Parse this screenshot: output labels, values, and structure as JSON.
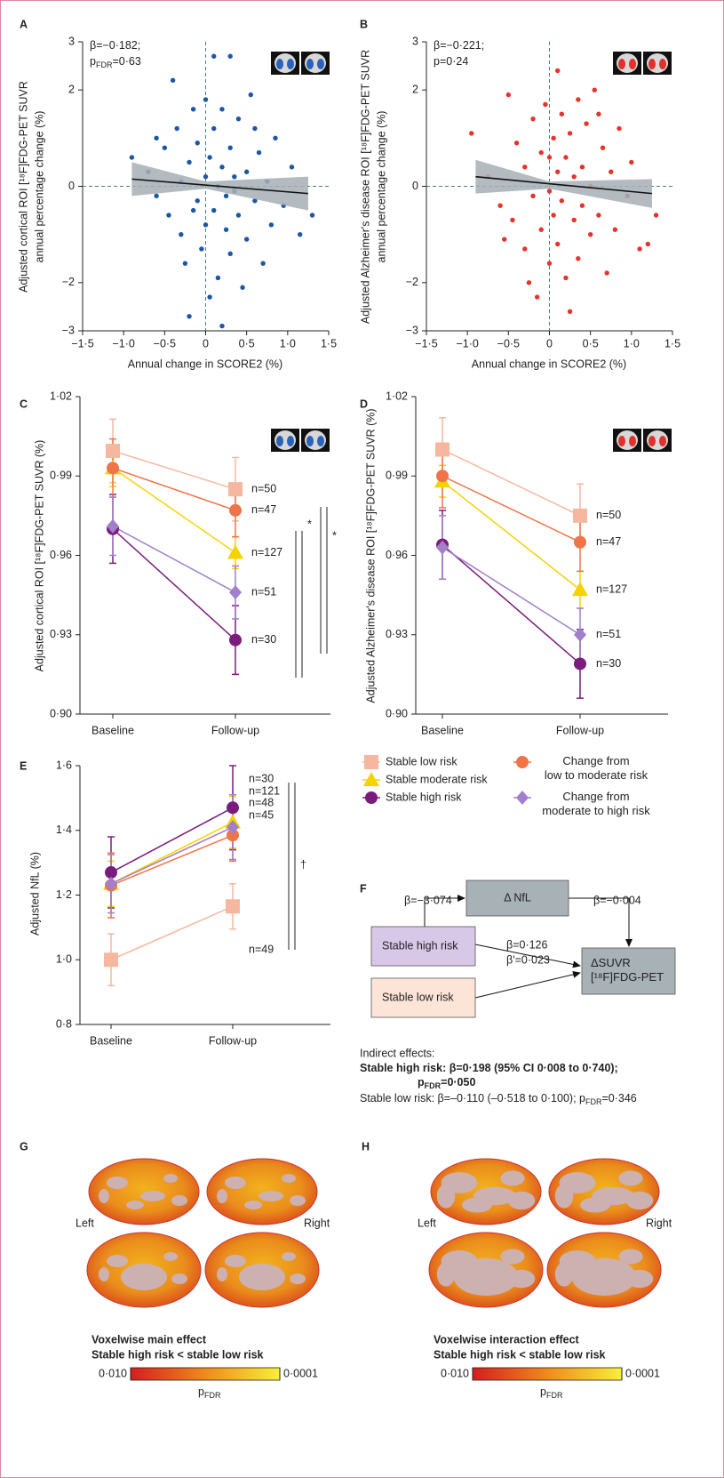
{
  "chart_data": [
    {
      "type": "scatter",
      "panel": "A",
      "ylabel": [
        "Adjusted cortical ROI [¹⁸F]FDG-PET SUVR",
        "annual percentage change (%)"
      ],
      "xlabel": "Annual change in SCORE2 (%)",
      "annotation": [
        {
          "text": "β=−0·182;"
        },
        {
          "text": "p",
          "sub": "FDR",
          "tail": "=0·63"
        }
      ],
      "color": "#1b57a5",
      "x": [
        -0.9,
        -0.7,
        -0.6,
        -0.5,
        -0.45,
        -0.4,
        -0.35,
        -0.3,
        -0.3,
        -0.25,
        -0.2,
        -0.2,
        -0.15,
        -0.1,
        -0.1,
        -0.05,
        0.0,
        0.0,
        0.0,
        0.05,
        0.05,
        0.1,
        0.1,
        0.1,
        0.15,
        0.15,
        0.2,
        0.2,
        0.2,
        0.25,
        0.25,
        0.3,
        0.3,
        0.3,
        0.35,
        0.4,
        0.4,
        0.45,
        0.5,
        0.5,
        0.55,
        0.6,
        0.65,
        0.7,
        0.75,
        0.8,
        0.85,
        0.95,
        1.05,
        1.15,
        1.3,
        -0.6,
        0.6,
        -0.15,
        0.35
      ],
      "values": [
        0.6,
        0.3,
        -0.2,
        0.8,
        -0.6,
        2.2,
        1.2,
        -1.0,
        0.1,
        -1.6,
        0.5,
        -2.7,
        1.6,
        -0.3,
        0.9,
        -1.3,
        0.2,
        1.8,
        -0.8,
        -2.3,
        0.6,
        2.7,
        -0.5,
        1.2,
        -1.9,
        0.0,
        -2.9,
        0.4,
        1.6,
        -0.9,
        -0.2,
        2.7,
        0.8,
        -1.4,
        0.2,
        -0.6,
        1.4,
        -2.1,
        0.3,
        -1.1,
        1.9,
        -0.3,
        0.7,
        -1.6,
        0.1,
        -0.8,
        1.0,
        -0.4,
        0.4,
        -1.0,
        -0.6,
        1.0,
        1.2,
        -0.5,
        -0.1
      ],
      "trend": {
        "x": [
          -0.9,
          1.25
        ],
        "y": [
          0.15,
          -0.15
        ]
      },
      "ci_band": {
        "x": [
          -0.9,
          0,
          1.25
        ],
        "lower": [
          -0.2,
          -0.05,
          -0.5
        ],
        "upper": [
          0.5,
          0.1,
          0.2
        ]
      },
      "xlim": [
        -1.5,
        1.5
      ],
      "xticks": [
        {
          "value": -1.5,
          "label": "−1·5"
        },
        {
          "value": -1,
          "label": "−1·0"
        },
        {
          "value": -0.5,
          "label": "−0·5"
        },
        0,
        {
          "value": 0.5,
          "label": "0·5"
        },
        {
          "value": 1,
          "label": "1·0"
        },
        {
          "value": 1.5,
          "label": "1·5"
        }
      ],
      "ylim": [
        -3,
        3
      ],
      "yticks": [
        {
          "value": -3,
          "label": "−3"
        },
        {
          "value": -2,
          "label": "−2"
        },
        0,
        2,
        3
      ]
    },
    {
      "type": "scatter",
      "panel": "B",
      "ylabel": [
        "Adjusted Alzheimer's disease ROI [¹⁸F]FDG-PET SUVR",
        "annual percentage change (%)"
      ],
      "xlabel": "Annual change in SCORE2 (%)",
      "annotation": [
        {
          "text": "β=−0·221;"
        },
        {
          "text": "p=0·24"
        }
      ],
      "color": "#e8322a",
      "x": [
        -0.95,
        -0.75,
        -0.6,
        -0.5,
        -0.45,
        -0.4,
        -0.3,
        -0.3,
        -0.25,
        -0.2,
        -0.2,
        -0.15,
        -0.1,
        -0.1,
        -0.05,
        0.0,
        0.0,
        0.05,
        0.05,
        0.1,
        0.1,
        0.1,
        0.15,
        0.15,
        0.2,
        0.2,
        0.25,
        0.25,
        0.3,
        0.3,
        0.35,
        0.35,
        0.4,
        0.4,
        0.45,
        0.5,
        0.5,
        0.55,
        0.6,
        0.65,
        0.7,
        0.75,
        0.8,
        0.85,
        0.95,
        1.0,
        1.1,
        1.2,
        1.3,
        -0.55,
        0.6,
        0.0
      ],
      "values": [
        1.1,
        0.2,
        -0.4,
        1.9,
        -0.7,
        0.9,
        -1.3,
        0.4,
        -2.0,
        1.4,
        -0.2,
        -2.3,
        0.7,
        -0.9,
        1.7,
        -0.1,
        -1.6,
        1.0,
        -0.6,
        2.4,
        0.3,
        -1.2,
        1.5,
        -0.3,
        -1.9,
        0.6,
        -2.6,
        1.1,
        -0.7,
        0.2,
        1.8,
        -1.5,
        0.4,
        -0.4,
        1.3,
        -1.0,
        0.0,
        2.0,
        -0.6,
        0.8,
        -1.8,
        0.3,
        -0.9,
        1.2,
        -0.2,
        0.5,
        -1.3,
        -1.2,
        -0.6,
        -1.1,
        1.5,
        0.6
      ],
      "trend": {
        "x": [
          -0.9,
          1.25
        ],
        "y": [
          0.2,
          -0.15
        ]
      },
      "ci_band": {
        "x": [
          -0.9,
          0,
          1.25
        ],
        "lower": [
          -0.15,
          -0.05,
          -0.45
        ],
        "upper": [
          0.55,
          0.1,
          0.15
        ]
      },
      "xlim": [
        -1.5,
        1.5
      ],
      "xticks": [
        {
          "value": -1.5,
          "label": "−1·5"
        },
        {
          "value": -1,
          "label": "−1·0"
        },
        {
          "value": -0.5,
          "label": "−0·5"
        },
        0,
        {
          "value": 0.5,
          "label": "0·5"
        },
        {
          "value": 1,
          "label": "1·0"
        },
        {
          "value": 1.5,
          "label": "1·5"
        }
      ],
      "ylim": [
        -3,
        3
      ],
      "yticks": [
        {
          "value": -3,
          "label": "−3"
        },
        {
          "value": -2,
          "label": "−2"
        },
        0,
        2,
        3
      ]
    },
    {
      "type": "line",
      "panel": "C",
      "ylabel": "Adjusted cortical ROI [¹⁸F]FDG-PET SUVR (%)",
      "categories": [
        "Baseline",
        "Follow-up"
      ],
      "series": [
        {
          "values": [
            0.9995,
            0.985
          ],
          "errors": [
            0.012,
            0.012
          ],
          "n_label": "n=50"
        },
        {
          "values": [
            0.993,
            0.961
          ],
          "errors": [
            0.007,
            0.006
          ],
          "n_label": "n=127"
        },
        {
          "values": [
            0.97,
            0.928
          ],
          "errors": [
            0.013,
            0.013
          ],
          "n_label": "n=30"
        },
        {
          "values": [
            0.993,
            0.977
          ],
          "errors": [
            0.011,
            0.01
          ],
          "n_label": "n=47"
        },
        {
          "values": [
            0.971,
            0.946
          ],
          "errors": [
            0.011,
            0.01
          ],
          "n_label": "n=51"
        }
      ],
      "significance": [
        {
          "label": "*"
        },
        {
          "label": "*"
        }
      ],
      "ylim": [
        0.9,
        1.02
      ],
      "yticks": [
        {
          "value": 0.9,
          "label": "0·90"
        },
        {
          "value": 0.93,
          "label": "0·93"
        },
        {
          "value": 0.96,
          "label": "0·96"
        },
        {
          "value": 0.99,
          "label": "0·99"
        },
        {
          "value": 1.02,
          "label": "1·02"
        }
      ]
    },
    {
      "type": "line",
      "panel": "D",
      "ylabel": "Adjusted Alzheimer's disease ROI [¹⁸F]FDG-PET SUVR (%)",
      "categories": [
        "Baseline",
        "Follow-up"
      ],
      "series": [
        {
          "values": [
            1.0,
            0.975
          ],
          "errors": [
            0.012,
            0.012
          ],
          "n_label": "n=50"
        },
        {
          "values": [
            0.988,
            0.947
          ],
          "errors": [
            0.006,
            0.007
          ],
          "n_label": "n=127"
        },
        {
          "values": [
            0.964,
            0.919
          ],
          "errors": [
            0.013,
            0.013
          ],
          "n_label": "n=30"
        },
        {
          "values": [
            0.99,
            0.965
          ],
          "errors": [
            0.012,
            0.011
          ],
          "n_label": "n=47"
        },
        {
          "values": [
            0.963,
            0.93
          ],
          "errors": [
            0.012,
            0.01
          ],
          "n_label": "n=51"
        }
      ],
      "ylim": [
        0.9,
        1.02
      ],
      "yticks": [
        {
          "value": 0.9,
          "label": "0·90"
        },
        {
          "value": 0.93,
          "label": "0·93"
        },
        {
          "value": 0.96,
          "label": "0·96"
        },
        {
          "value": 0.99,
          "label": "0·99"
        },
        {
          "value": 1.02,
          "label": "1·02"
        }
      ]
    },
    {
      "type": "line",
      "panel": "E",
      "ylabel": "Adjusted NfL (%)",
      "categories": [
        "Baseline",
        "Follow-up"
      ],
      "series": [
        {
          "values": [
            1.0,
            1.165
          ],
          "errors": [
            0.08,
            0.07
          ],
          "n_label": "n=49"
        },
        {
          "values": [
            1.235,
            1.425
          ],
          "errors": [
            0.07,
            0.08
          ],
          "n_label": "n=121"
        },
        {
          "values": [
            1.27,
            1.47
          ],
          "errors": [
            0.11,
            0.13
          ],
          "n_label": "n=30"
        },
        {
          "values": [
            1.23,
            1.385
          ],
          "errors": [
            0.1,
            0.08
          ],
          "n_label": "n=45"
        },
        {
          "values": [
            1.235,
            1.41
          ],
          "errors": [
            0.09,
            0.1
          ],
          "n_label": "n=48"
        }
      ],
      "significance": [
        {
          "label": "†"
        }
      ],
      "ylim": [
        0.8,
        1.6
      ],
      "yticks": [
        {
          "value": 0.8,
          "label": "0·8"
        },
        {
          "value": 1,
          "label": "1·0"
        },
        {
          "value": 1.2,
          "label": "1·2"
        },
        {
          "value": 1.4,
          "label": "1·4"
        },
        {
          "value": 1.6,
          "label": "1·6"
        }
      ]
    }
  ],
  "legend": [
    {
      "name": "Stable low risk",
      "color": "#f6b7a0",
      "marker": "square"
    },
    {
      "name": "Stable moderate risk",
      "color": "#f5d300",
      "marker": "triangle"
    },
    {
      "name": "Stable high risk",
      "color": "#7a1c7c",
      "marker": "circle"
    },
    {
      "name": "Change from\nlow to moderate risk",
      "color": "#ef7448",
      "marker": "circle"
    },
    {
      "name": "Change from\nmoderate to high risk",
      "color": "#a17fc9",
      "marker": "diamond"
    }
  ],
  "diagram": {
    "panel": "F",
    "nodes": [
      {
        "label": "Δ NfL",
        "color": "#a8b1b6"
      },
      {
        "label": "Stable high risk",
        "color": "#d8c8e8"
      },
      {
        "label": "Stable low risk",
        "color": "#fce4d6"
      },
      {
        "label": "ΔSUVR\n[¹⁸F]FDG-PET",
        "color": "#a8b1b6"
      }
    ],
    "edge_labels": [
      "β=−3·074",
      "β=−0·004",
      "β=0·126",
      "β'=0·023"
    ],
    "indirect": {
      "title": "Indirect effects:",
      "high": {
        "text": "Stable high risk: β=0·198 (95% CI 0·008 to 0·740);"
      },
      "high_p": {
        "text": "p",
        "sub": "FDR",
        "tail": "=0·050"
      },
      "low": {
        "text": "Stable low risk: β=–0·110 (–0·518 to 0·100); p",
        "sub": "FDR",
        "tail": "=0·346"
      }
    }
  },
  "brain_maps": [
    {
      "panel": "G",
      "left": "Left",
      "right": "Right",
      "caption": [
        "Voxelwise main effect",
        "Stable high risk < stable low risk"
      ],
      "colorbar": {
        "ticks": [
          {
            "value": 0.01,
            "label": "0·010"
          },
          {
            "value": 0.0001,
            "label": "0·0001"
          }
        ],
        "title": {
          "text": "p",
          "sub": "FDR"
        }
      }
    },
    {
      "panel": "H",
      "left": "Left",
      "right": "Right",
      "caption": [
        "Voxelwise interaction effect",
        "Stable high risk < stable low risk"
      ],
      "colorbar": {
        "ticks": [
          {
            "value": 0.01,
            "label": "0·010"
          },
          {
            "value": 0.0001,
            "label": "0·0001"
          }
        ],
        "title": {
          "text": "p",
          "sub": "FDR"
        }
      }
    }
  ]
}
